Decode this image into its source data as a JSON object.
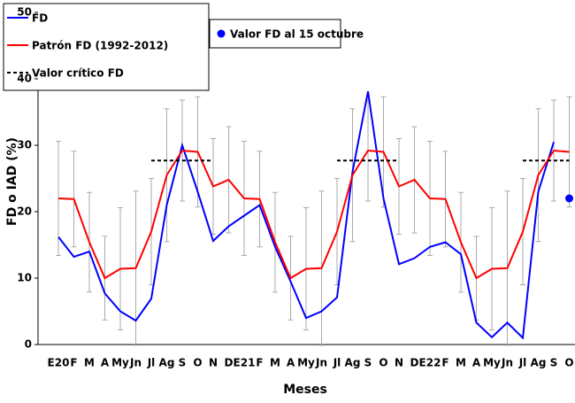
{
  "chart_data": {
    "type": "line",
    "y_label": "FD o IAD (%)",
    "x_label": "Meses",
    "categories": [
      "E20",
      "F",
      "M",
      "A",
      "My",
      "Jn",
      "Jl",
      "Ag",
      "S",
      "O",
      "N",
      "D",
      "E21",
      "F",
      "M",
      "A",
      "My",
      "Jn",
      "Jl",
      "Ag",
      "S",
      "O",
      "N",
      "D",
      "E22",
      "F",
      "M",
      "A",
      "My",
      "Jn",
      "Jl",
      "Ag",
      "S",
      "O"
    ],
    "ylim": [
      0,
      50
    ],
    "yticks": [
      0,
      10,
      20,
      30,
      40,
      50
    ],
    "series": [
      {
        "name": "FD",
        "color": "#0000ff",
        "values": [
          16.2,
          13.2,
          14,
          7.7,
          5,
          3.6,
          6.9,
          21,
          30,
          23,
          15.6,
          17.8,
          19.4,
          21,
          14.7,
          9.5,
          4,
          5,
          7.1,
          26,
          38.1,
          22,
          12.1,
          13,
          14.7,
          15.4,
          13.6,
          3.3,
          1.1,
          3.3,
          1,
          23,
          30.5,
          null
        ]
      },
      {
        "name": "Patrón FD (1992-2012)",
        "color": "#ff0000",
        "values": [
          22,
          21.9,
          15.4,
          10,
          11.4,
          11.5,
          17,
          25.5,
          29.2,
          29,
          23.8,
          24.8,
          22,
          21.9,
          15.4,
          10,
          11.4,
          11.5,
          17,
          25.5,
          29.2,
          29,
          23.8,
          24.8,
          22,
          21.9,
          15.4,
          10,
          11.4,
          11.5,
          17,
          25.5,
          29.2,
          29
        ],
        "errors": [
          8.6,
          7.2,
          7.5,
          6.3,
          9.2,
          11.6,
          8,
          10,
          7.6,
          8.3,
          7.2,
          8,
          8.6,
          7.2,
          7.5,
          6.3,
          9.2,
          11.6,
          8,
          10,
          7.6,
          8.3,
          7.2,
          8,
          8.6,
          7.2,
          7.5,
          6.3,
          9.2,
          11.6,
          8,
          10,
          7.6,
          8.3
        ]
      },
      {
        "name": "Valor crítico FD",
        "color": "#000000",
        "dash": true,
        "values": [
          null,
          null,
          null,
          null,
          null,
          null,
          27.7,
          27.7,
          27.7,
          27.7,
          27.7,
          null,
          null,
          null,
          null,
          null,
          null,
          null,
          27.7,
          27.7,
          27.7,
          27.7,
          27.7,
          null,
          null,
          null,
          null,
          null,
          null,
          null,
          27.7,
          27.7,
          27.7,
          27.7
        ]
      },
      {
        "name": "Valor FD al 15 octubre",
        "color": "#0000ff",
        "marker": true,
        "values": [
          null,
          null,
          null,
          null,
          null,
          null,
          null,
          null,
          null,
          null,
          null,
          null,
          null,
          null,
          null,
          null,
          null,
          null,
          null,
          null,
          null,
          null,
          null,
          null,
          null,
          null,
          null,
          null,
          null,
          null,
          null,
          null,
          null,
          22
        ]
      }
    ]
  }
}
